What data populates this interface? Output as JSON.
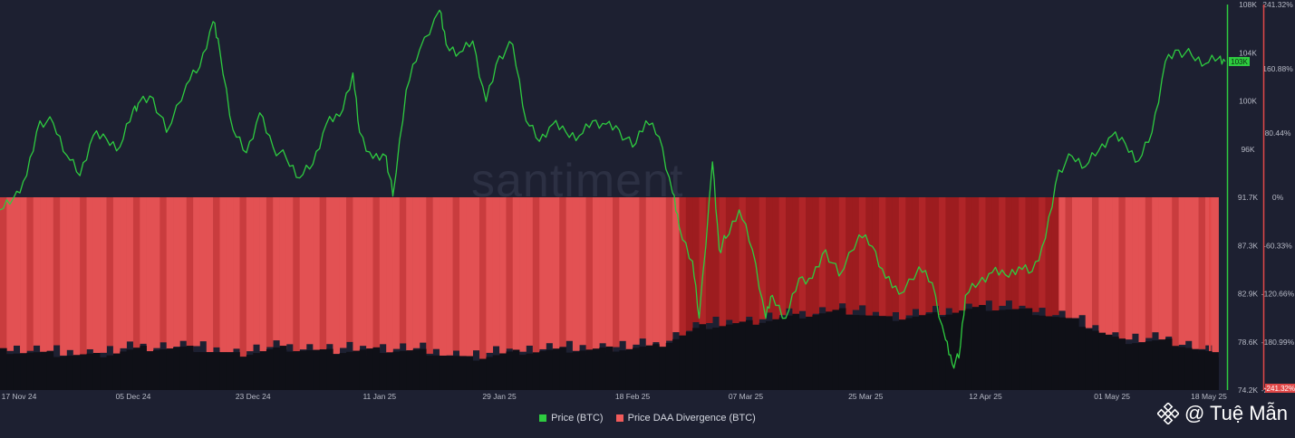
{
  "watermark": "santiment",
  "legend": [
    {
      "label": "Price (BTC)",
      "color": "#2ecc40"
    },
    {
      "label": "Price DAA Divergence (BTC)",
      "color": "#f25b5b"
    }
  ],
  "credit": {
    "text": "@ Tuệ Mẫn",
    "icon": "binance-diamond-icon"
  },
  "colors": {
    "background": "#1d2031",
    "price_line": "#2ecc40",
    "divergence_light": "#e85555",
    "divergence_dark": "#a31f1f",
    "volume_bars": "#0e0f14"
  },
  "chart_data": {
    "type": "line",
    "title": "",
    "xlabel": "",
    "ylabel": "",
    "x_ticks": [
      "17 Nov 24",
      "05 Dec 24",
      "23 Dec 24",
      "11 Jan 25",
      "29 Jan 25",
      "18 Feb 25",
      "07 Mar 25",
      "25 Mar 25",
      "12 Apr 25",
      "01 May 25",
      "18 May 25"
    ],
    "y_left_ticks": [
      "108K",
      "104K",
      "100K",
      "96K",
      "91.7K",
      "87.3K",
      "82.9K",
      "78.6K",
      "74.2K"
    ],
    "y_left_range": [
      74200,
      108000
    ],
    "y_right_ticks": [
      "241.32%",
      "160.88%",
      "80.44%",
      "0%",
      "-60.33%",
      "-120.66%",
      "-180.99%",
      "-241.32%"
    ],
    "y_right_range": [
      -241.32,
      241.32
    ],
    "current_price_label": "103K",
    "current_divergence_label": "-241.32%",
    "x_range": [
      "2024-11-15",
      "2025-05-18"
    ],
    "series": [
      {
        "name": "Price (BTC)",
        "axis": "left",
        "points": [
          [
            "2024-11-15",
            90000
          ],
          [
            "2024-11-17",
            91000
          ],
          [
            "2024-11-19",
            93000
          ],
          [
            "2024-11-21",
            97800
          ],
          [
            "2024-11-23",
            97600
          ],
          [
            "2024-11-25",
            94800
          ],
          [
            "2024-11-27",
            93000
          ],
          [
            "2024-11-29",
            96500
          ],
          [
            "2024-12-01",
            96200
          ],
          [
            "2024-12-03",
            95500
          ],
          [
            "2024-12-05",
            98800
          ],
          [
            "2024-12-06",
            99500
          ],
          [
            "2024-12-08",
            99800
          ],
          [
            "2024-12-10",
            96800
          ],
          [
            "2024-12-13",
            101000
          ],
          [
            "2024-12-15",
            102500
          ],
          [
            "2024-12-17",
            106500
          ],
          [
            "2024-12-18",
            104000
          ],
          [
            "2024-12-20",
            97000
          ],
          [
            "2024-12-22",
            95000
          ],
          [
            "2024-12-24",
            98500
          ],
          [
            "2024-12-26",
            95500
          ],
          [
            "2024-12-28",
            94500
          ],
          [
            "2024-12-30",
            92800
          ],
          [
            "2025-01-01",
            94000
          ],
          [
            "2025-01-03",
            97500
          ],
          [
            "2025-01-05",
            98200
          ],
          [
            "2025-01-07",
            102000
          ],
          [
            "2025-01-08",
            96800
          ],
          [
            "2025-01-10",
            94500
          ],
          [
            "2025-01-12",
            94700
          ],
          [
            "2025-01-13",
            91200
          ],
          [
            "2025-01-15",
            100500
          ],
          [
            "2025-01-17",
            104000
          ],
          [
            "2025-01-20",
            107500
          ],
          [
            "2025-01-21",
            104500
          ],
          [
            "2025-01-23",
            103800
          ],
          [
            "2025-01-25",
            104800
          ],
          [
            "2025-01-27",
            99500
          ],
          [
            "2025-01-29",
            103500
          ],
          [
            "2025-01-31",
            104500
          ],
          [
            "2025-02-02",
            97800
          ],
          [
            "2025-02-04",
            96000
          ],
          [
            "2025-02-06",
            97500
          ],
          [
            "2025-02-08",
            96800
          ],
          [
            "2025-02-10",
            96500
          ],
          [
            "2025-02-12",
            97800
          ],
          [
            "2025-02-14",
            97500
          ],
          [
            "2025-02-16",
            97000
          ],
          [
            "2025-02-18",
            95500
          ],
          [
            "2025-02-20",
            97800
          ],
          [
            "2025-02-22",
            96400
          ],
          [
            "2025-02-24",
            91500
          ],
          [
            "2025-02-25",
            88500
          ],
          [
            "2025-02-27",
            85500
          ],
          [
            "2025-02-28",
            80500
          ],
          [
            "2025-03-02",
            94200
          ],
          [
            "2025-03-03",
            86500
          ],
          [
            "2025-03-04",
            87500
          ],
          [
            "2025-03-06",
            90000
          ],
          [
            "2025-03-08",
            86500
          ],
          [
            "2025-03-10",
            80500
          ],
          [
            "2025-03-11",
            82500
          ],
          [
            "2025-03-13",
            80500
          ],
          [
            "2025-03-15",
            84000
          ],
          [
            "2025-03-17",
            84000
          ],
          [
            "2025-03-19",
            86500
          ],
          [
            "2025-03-21",
            84200
          ],
          [
            "2025-03-24",
            87800
          ],
          [
            "2025-03-26",
            86800
          ],
          [
            "2025-03-28",
            84000
          ],
          [
            "2025-03-30",
            82600
          ],
          [
            "2025-04-02",
            85000
          ],
          [
            "2025-04-04",
            83600
          ],
          [
            "2025-04-06",
            78600
          ],
          [
            "2025-04-07",
            76500
          ],
          [
            "2025-04-08",
            77000
          ],
          [
            "2025-04-09",
            82500
          ],
          [
            "2025-04-11",
            83600
          ],
          [
            "2025-04-13",
            84500
          ],
          [
            "2025-04-15",
            84300
          ],
          [
            "2025-04-17",
            85000
          ],
          [
            "2025-04-19",
            84600
          ],
          [
            "2025-04-21",
            87500
          ],
          [
            "2025-04-23",
            93500
          ],
          [
            "2025-04-25",
            94700
          ],
          [
            "2025-04-27",
            93800
          ],
          [
            "2025-04-29",
            95200
          ],
          [
            "2025-05-01",
            96500
          ],
          [
            "2025-05-03",
            95800
          ],
          [
            "2025-05-05",
            94300
          ],
          [
            "2025-05-07",
            96800
          ],
          [
            "2025-05-09",
            103000
          ],
          [
            "2025-05-11",
            104000
          ],
          [
            "2025-05-13",
            103500
          ],
          [
            "2025-05-15",
            102800
          ],
          [
            "2025-05-17",
            103300
          ],
          [
            "2025-05-18",
            103000
          ]
        ]
      },
      {
        "name": "Price DAA Divergence (BTC)",
        "axis": "right",
        "note_type": "bar",
        "points": [
          [
            "2024-11-15",
            -190
          ],
          [
            "2024-11-22",
            -194
          ],
          [
            "2024-11-29",
            -196
          ],
          [
            "2024-12-06",
            -187
          ],
          [
            "2024-12-13",
            -187
          ],
          [
            "2024-12-20",
            -195
          ],
          [
            "2024-12-27",
            -187
          ],
          [
            "2025-01-03",
            -191
          ],
          [
            "2025-01-10",
            -189
          ],
          [
            "2025-01-17",
            -191
          ],
          [
            "2025-01-24",
            -200
          ],
          [
            "2025-01-31",
            -192
          ],
          [
            "2025-02-07",
            -189
          ],
          [
            "2025-02-14",
            -188
          ],
          [
            "2025-02-21",
            -185
          ],
          [
            "2025-02-28",
            -160
          ],
          [
            "2025-03-07",
            -155
          ],
          [
            "2025-03-14",
            -147
          ],
          [
            "2025-03-21",
            -140
          ],
          [
            "2025-03-28",
            -150
          ],
          [
            "2025-04-04",
            -145
          ],
          [
            "2025-04-11",
            -136
          ],
          [
            "2025-04-18",
            -140
          ],
          [
            "2025-04-25",
            -153
          ],
          [
            "2025-05-02",
            -178
          ],
          [
            "2025-05-09",
            -178
          ],
          [
            "2025-05-16",
            -195
          ],
          [
            "2025-05-18",
            -241.32
          ]
        ]
      }
    ]
  }
}
